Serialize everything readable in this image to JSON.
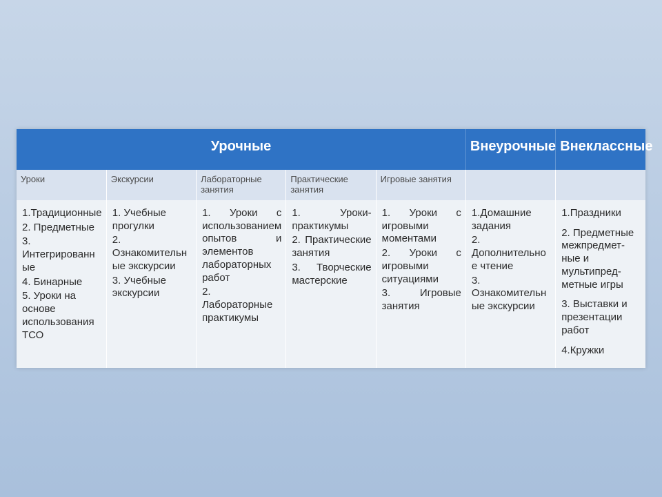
{
  "colors": {
    "header_bg": "#2f73c5",
    "header_text": "#ffffff",
    "subheader_bg": "#d9e2ef",
    "subheader_text": "#4a4a4a",
    "cell_bg": "#eef2f6",
    "cell_text": "#2b2b2b",
    "frame_bg": "#ffffff",
    "page_gradient_top": "#c7d6e8",
    "page_gradient_bottom": "#a9c0dc"
  },
  "header": {
    "urochnye": "Урочные",
    "vneurochnye": "Внеурочные",
    "vneklassnye": "Внеклассные"
  },
  "subheader": {
    "c1": "Уроки",
    "c2": "Экскурсии",
    "c3": "Лабораторные занятия",
    "c4": "Практические занятия",
    "c5": "Игровые занятия",
    "c6": "",
    "c7": ""
  },
  "row": {
    "c1": {
      "i1": "1.Традиционные",
      "i2": "2. Предметные",
      "i3": "3. Интегрированные",
      "i4": "4. Бинарные",
      "i5": "5. Уроки на основе использования ТСО"
    },
    "c2": {
      "i1": "1. Учебные прогулки",
      "i2": "2. Ознакомительные экскурсии",
      "i3": "3. Учебные экскурсии"
    },
    "c3": {
      "i1": "1. Уроки с использованием опытов и элементов лабораторных работ",
      "i2": "2. Лабораторные практикумы"
    },
    "c4": {
      "i1": "1. Уроки-практикумы",
      "i2": "2. Практические занятия",
      "i3": "3. Творческие мастерские"
    },
    "c5": {
      "i1": "1. Уроки с игровыми моментами",
      "i2": "2. Уроки с игровыми ситуациями",
      "i3": "3. Игровые занятия"
    },
    "c6": {
      "i1": "1.Домашние задания",
      "i2": "2. Дополнительное чтение",
      "i3": "3. Ознакомительные экскурсии"
    },
    "c7": {
      "i1": "1.Праздники",
      "i2": "2. Предметные межпредмет-ные и мультипред-метные игры",
      "i3": "3. Выставки и презентации работ",
      "i4": "4.Кружки"
    }
  }
}
